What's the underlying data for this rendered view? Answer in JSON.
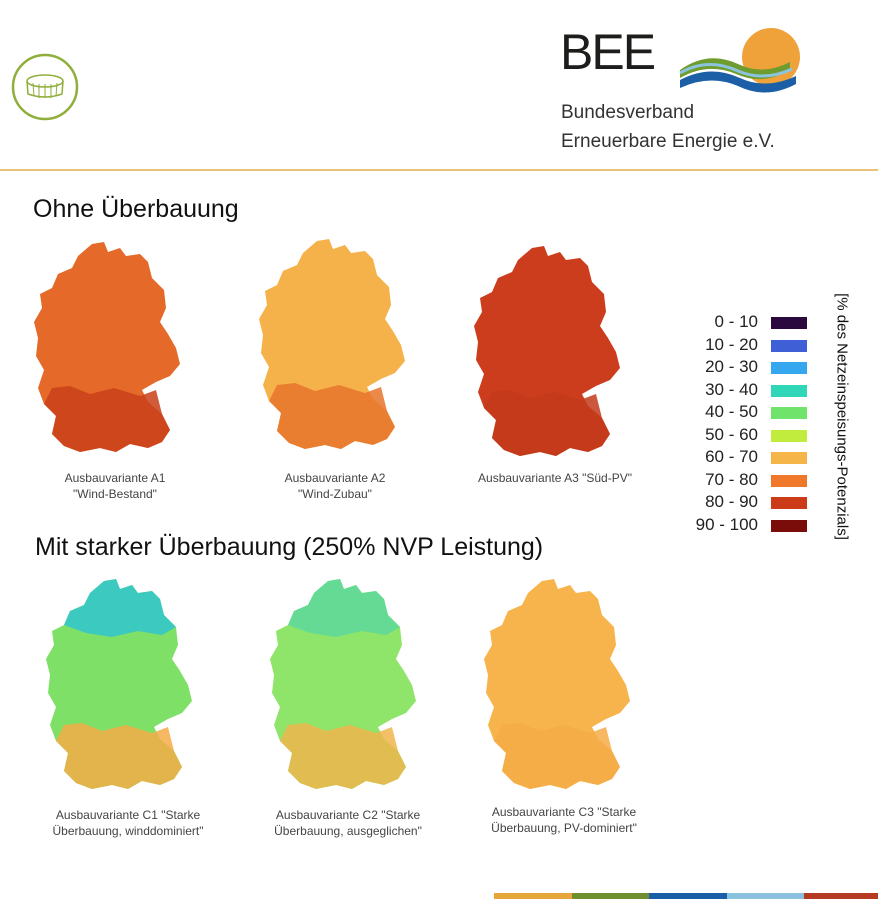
{
  "header": {
    "brand_name": "BEE",
    "brand_line1": "Bundesverband",
    "brand_line2": "Erneuerbare Energie e.V."
  },
  "sections": {
    "top_title": "Ohne Überbauung",
    "bottom_title": "Mit starker  Überbauung (250% NVP Leistung)"
  },
  "maps": [
    {
      "caption1": "Ausbauvariante A1",
      "caption2": "\"Wind-Bestand\"",
      "base_color": "#e56a2a",
      "south_color": "#c9401a"
    },
    {
      "caption1": "Ausbauvariante A2",
      "caption2": "\"Wind-Zubau\"",
      "base_color": "#f6b24a",
      "south_color": "#e8742c"
    },
    {
      "caption1": "Ausbauvariante A3 \"Süd-PV\"",
      "caption2": "",
      "base_color": "#cc3d1d",
      "south_color": "#c23a1b"
    },
    {
      "caption1": "Ausbauvariante C1 \"Starke",
      "caption2": "Überbauung, winddominiert\"",
      "base_color": "#7ee067",
      "south_color": "#f4ac48"
    },
    {
      "caption1": "Ausbauvariante C2 \"Starke",
      "caption2": "Überbauung, ausgeglichen\"",
      "base_color": "#8fe46a",
      "south_color": "#f0b64c"
    },
    {
      "caption1": "Ausbauvariante C3 \"Starke",
      "caption2": "Überbauung, PV-dominiert\"",
      "base_color": "#f7b44c",
      "south_color": "#f4ad46"
    }
  ],
  "legend": {
    "axis_label": "[% des Netzeinspeisungs-Potenzials]",
    "items": [
      {
        "label": "0 - 10",
        "color": "#2a0a3e"
      },
      {
        "label": "10 - 20",
        "color": "#3e5fd6"
      },
      {
        "label": "20 - 30",
        "color": "#35a7ee"
      },
      {
        "label": "30 - 40",
        "color": "#2fd6b8"
      },
      {
        "label": "40 - 50",
        "color": "#6fe36a"
      },
      {
        "label": "50 - 60",
        "color": "#c2ec3d"
      },
      {
        "label": "60 - 70",
        "color": "#f6b548"
      },
      {
        "label": "70 - 80",
        "color": "#f0782a"
      },
      {
        "label": "80 - 90",
        "color": "#cc3b17"
      },
      {
        "label": "90 - 100",
        "color": "#7a0d0a"
      }
    ]
  },
  "footer_bar_colors": [
    "#e6a63a",
    "#6f8f2e",
    "#1b5ea8",
    "#89c1dc",
    "#b53a22"
  ]
}
